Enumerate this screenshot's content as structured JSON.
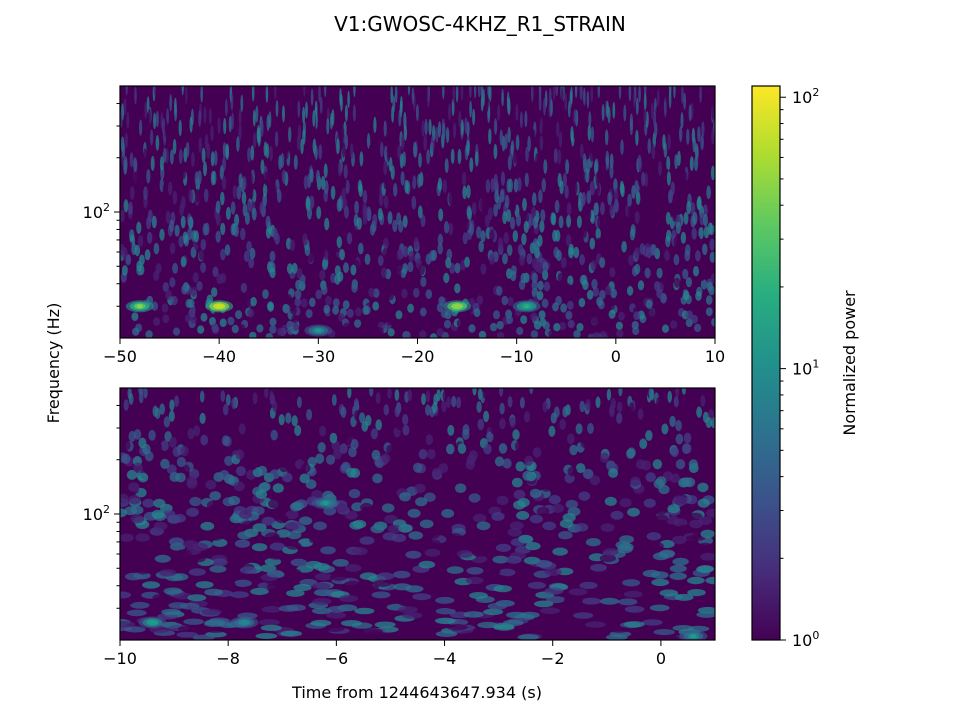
{
  "figure": {
    "title": "V1:GWOSC-4KHZ_R1_STRAIN"
  },
  "chart_data": [
    {
      "type": "heatmap",
      "panel": "top",
      "xlim": [
        -50,
        10
      ],
      "xscale": "linear",
      "xticks": [
        -50,
        -40,
        -30,
        -20,
        -10,
        0,
        10
      ],
      "xtick_labels": [
        "−50",
        "−40",
        "−30",
        "−20",
        "−10",
        "0",
        "10"
      ],
      "ylim": [
        20,
        500
      ],
      "yscale": "log",
      "ytick_major": [
        {
          "value": 100,
          "base": "10",
          "exp": "2"
        }
      ],
      "xlabel": "",
      "ylabel": "Frequency (Hz)",
      "cmap": "viridis",
      "hot_spots": [
        {
          "t": -48,
          "f": 30,
          "power": 40
        },
        {
          "t": -40,
          "f": 30,
          "power": 80
        },
        {
          "t": -16,
          "f": 30,
          "power": 55
        },
        {
          "t": -9,
          "f": 30,
          "power": 20
        },
        {
          "t": -30,
          "f": 22,
          "power": 12
        }
      ]
    },
    {
      "type": "heatmap",
      "panel": "bottom",
      "xlim": [
        -10,
        1
      ],
      "xscale": "linear",
      "xticks": [
        -10,
        -8,
        -6,
        -4,
        -2,
        0
      ],
      "xtick_labels": [
        "−10",
        "−8",
        "−6",
        "−4",
        "−2",
        "0"
      ],
      "ylim": [
        20,
        500
      ],
      "yscale": "log",
      "ytick_major": [
        {
          "value": 100,
          "base": "10",
          "exp": "2"
        }
      ],
      "xlabel": "Time from 1244643647.934 (s)",
      "ylabel": "",
      "cmap": "viridis",
      "hot_spots": [
        {
          "t": -9.4,
          "f": 25,
          "power": 14
        },
        {
          "t": -7.7,
          "f": 25,
          "power": 10
        },
        {
          "t": -6.2,
          "f": 115,
          "power": 12
        },
        {
          "t": 0.6,
          "f": 21,
          "power": 11
        }
      ]
    }
  ],
  "colorbar": {
    "label": "Normalized power",
    "scale": "log",
    "range": [
      1,
      110
    ],
    "cmap": "viridis",
    "ticks": [
      {
        "value": 1,
        "base": "10",
        "exp": "0"
      },
      {
        "value": 10,
        "base": "10",
        "exp": "1"
      },
      {
        "value": 100,
        "base": "10",
        "exp": "2"
      }
    ]
  }
}
